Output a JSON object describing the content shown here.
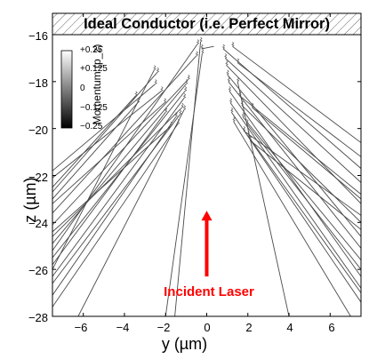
{
  "chart_data": {
    "type": "line",
    "xlabel": "y (µm)",
    "ylabel": "z (µm)",
    "xlim": [
      -7.5,
      7.5
    ],
    "ylim": [
      -28,
      -16
    ],
    "x_ticks": [
      "−6",
      "−4",
      "−2",
      "0",
      "2",
      "4",
      "6"
    ],
    "y_ticks": [
      "−16",
      "−18",
      "−20",
      "−22",
      "−24",
      "−26",
      "−28"
    ],
    "grid": false,
    "boundary": {
      "label": "Ideal Conductor (i.e. Perfect Mirror)",
      "z_range": [
        -16.35,
        -15.4
      ],
      "fill": "hatched"
    },
    "annotation": {
      "text": "Incident Laser",
      "color": "#ff0000",
      "arrow_from": [
        0,
        -26.3
      ],
      "arrow_to": [
        0,
        -23.5
      ]
    },
    "colorbar": {
      "title": "Momentum (p_z)",
      "ticks": [
        "+0.25",
        "+0.125",
        "0",
        "−0.125",
        "−0.25"
      ],
      "range": [
        -0.25,
        0.25
      ],
      "colormap": "gray",
      "placement": "top-left"
    },
    "series": [
      {
        "x": [
          -0.22,
          -2.0
        ],
        "y": [
          -16.8,
          -28.0
        ]
      },
      {
        "x": [
          -0.3,
          -1.55
        ],
        "y": [
          -16.3,
          -28.0
        ]
      },
      {
        "x": [
          -0.45,
          -7.5
        ],
        "y": [
          -16.4,
          -25.2
        ]
      },
      {
        "x": [
          -0.5,
          -7.5
        ],
        "y": [
          -16.9,
          -23.6
        ]
      },
      {
        "x": [
          -0.9,
          -7.5
        ],
        "y": [
          -17.9,
          -24.1
        ]
      },
      {
        "x": [
          -1.0,
          -7.5
        ],
        "y": [
          -18.1,
          -24.9
        ]
      },
      {
        "x": [
          -1.05,
          -7.5
        ],
        "y": [
          -18.4,
          -25.5
        ]
      },
      {
        "x": [
          -1.1,
          -7.5
        ],
        "y": [
          -18.7,
          -26.3
        ]
      },
      {
        "x": [
          -1.1,
          -6.25
        ],
        "y": [
          -19.2,
          -28.0
        ]
      },
      {
        "x": [
          -1.2,
          -7.5
        ],
        "y": [
          -19.1,
          -24.6
        ]
      },
      {
        "x": [
          -1.3,
          -7.5
        ],
        "y": [
          -19.4,
          -26.6
        ]
      },
      {
        "x": [
          -1.4,
          -7.5
        ],
        "y": [
          -19.8,
          -27.6
        ]
      },
      {
        "x": [
          -1.5,
          -7.5
        ],
        "y": [
          -19.5,
          -27.1
        ]
      },
      {
        "x": [
          -1.75,
          -7.5
        ],
        "y": [
          -19.9,
          -24.4
        ]
      },
      {
        "x": [
          -2.0,
          -7.5
        ],
        "y": [
          -19.3,
          -25.8
        ]
      },
      {
        "x": [
          -2.05,
          -7.5
        ],
        "y": [
          -18.9,
          -23.2
        ]
      },
      {
        "x": [
          -2.2,
          -7.5
        ],
        "y": [
          -18.4,
          -22.1
        ]
      },
      {
        "x": [
          -2.4,
          -7.5
        ],
        "y": [
          -17.6,
          -22.7
        ]
      },
      {
        "x": [
          -2.5,
          -7.5
        ],
        "y": [
          -18.1,
          -21.8
        ]
      },
      {
        "x": [
          -2.55,
          -7.5
        ],
        "y": [
          -17.5,
          -26.0
        ]
      },
      {
        "x": [
          -3.35,
          -7.5
        ],
        "y": [
          -18.9,
          -23.0
        ]
      },
      {
        "x": [
          -3.45,
          -7.5
        ],
        "y": [
          -18.6,
          -22.5
        ]
      },
      {
        "x": [
          0.8,
          7.5
        ],
        "y": [
          -16.6,
          -21.7
        ]
      },
      {
        "x": [
          0.9,
          7.5
        ],
        "y": [
          -17.0,
          -22.3
        ]
      },
      {
        "x": [
          0.95,
          7.5
        ],
        "y": [
          -17.3,
          -23.2
        ]
      },
      {
        "x": [
          1.0,
          7.5
        ],
        "y": [
          -17.7,
          -24.6
        ]
      },
      {
        "x": [
          1.05,
          7.5
        ],
        "y": [
          -18.0,
          -25.1
        ]
      },
      {
        "x": [
          1.1,
          7.5
        ],
        "y": [
          -18.4,
          -26.3
        ]
      },
      {
        "x": [
          1.15,
          7.5
        ],
        "y": [
          -18.9,
          -26.8
        ]
      },
      {
        "x": [
          1.2,
          7.5
        ],
        "y": [
          -19.3,
          -27.4
        ]
      },
      {
        "x": [
          1.3,
          7.0
        ],
        "y": [
          -19.7,
          -28.0
        ]
      },
      {
        "x": [
          1.25,
          7.5
        ],
        "y": [
          -16.5,
          -20.6
        ]
      },
      {
        "x": [
          1.5,
          7.5
        ],
        "y": [
          -17.2,
          -21.2
        ]
      },
      {
        "x": [
          1.5,
          4.0
        ],
        "y": [
          -18.0,
          -28.0
        ]
      },
      {
        "x": [
          1.6,
          7.5
        ],
        "y": [
          -18.6,
          -22.8
        ]
      },
      {
        "x": [
          1.7,
          7.5
        ],
        "y": [
          -19.0,
          -24.0
        ]
      },
      {
        "x": [
          1.75,
          7.5
        ],
        "y": [
          -19.5,
          -25.6
        ]
      },
      {
        "x": [
          1.8,
          7.5
        ],
        "y": [
          -20.1,
          -23.7
        ]
      },
      {
        "x": [
          1.95,
          7.5
        ],
        "y": [
          -19.8,
          -26.0
        ]
      },
      {
        "x": [
          2.0,
          7.5
        ],
        "y": [
          -20.3,
          -27.0
        ]
      },
      {
        "x": [
          2.1,
          7.5
        ],
        "y": [
          -20.5,
          -24.3
        ]
      },
      {
        "x": [
          2.2,
          7.5
        ],
        "y": [
          -19.1,
          -23.0
        ]
      },
      {
        "x": [
          -0.25,
          0.35
        ],
        "y": [
          -16.6,
          -16.5
        ]
      }
    ]
  }
}
